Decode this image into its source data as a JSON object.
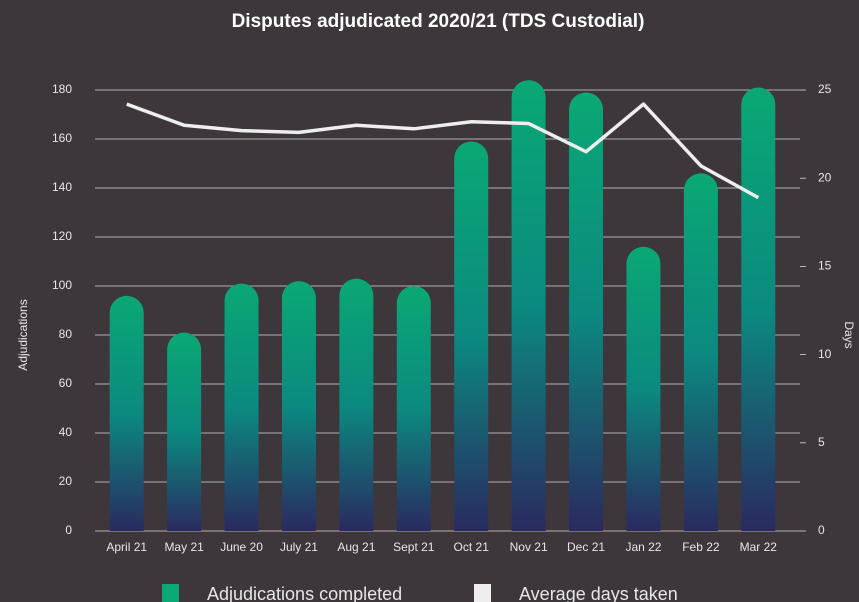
{
  "chart_data": {
    "type": "bar",
    "title": "Disputes adjudicated 2020/21 (TDS Custodial)",
    "ylabel": "Adjudications",
    "y2label": "Days",
    "categories": [
      "April 21",
      "May 21",
      "June 20",
      "July 21",
      "Aug 21",
      "Sept 21",
      "Oct 21",
      "Nov 21",
      "Dec 21",
      "Jan 22",
      "Feb 22",
      "Mar 22"
    ],
    "series": [
      {
        "name": "Adjudications completed",
        "type": "bar",
        "color": "#0aa874",
        "gradient": [
          "#0aa874",
          "#0b8a80",
          "#2a2a60"
        ],
        "values": [
          96,
          81,
          101,
          102,
          103,
          100,
          159,
          184,
          179,
          116,
          146,
          181
        ]
      },
      {
        "name": "Average days taken",
        "type": "line",
        "axis": "y2",
        "color": "#eeeeee",
        "values": [
          24.2,
          23.0,
          22.7,
          22.6,
          23.0,
          22.8,
          23.2,
          23.1,
          21.5,
          24.2,
          20.7,
          18.9
        ]
      }
    ],
    "ylim": [
      0,
      180
    ],
    "yticks": [
      0,
      20,
      40,
      60,
      80,
      100,
      120,
      140,
      160,
      180
    ],
    "y2lim": [
      0,
      25
    ],
    "y2ticks": [
      0,
      5,
      10,
      15,
      20,
      25
    ],
    "grid": true,
    "legend": "bottom"
  }
}
